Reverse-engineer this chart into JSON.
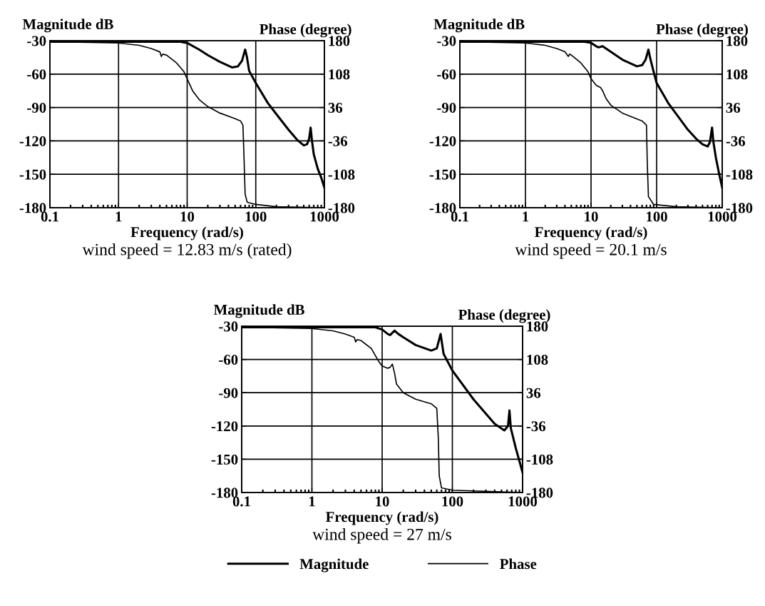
{
  "chart_data": [
    {
      "type": "line",
      "xlabel": "Frequency (rad/s)",
      "ylabel": "Magnitude dB",
      "y2label": "Phase (degree)",
      "subtitle": "wind speed = 12.83 m/s (rated)",
      "log": "x",
      "grid": true,
      "xlim": [
        0.1,
        1000
      ],
      "xticks": [
        {
          "value": 0.1,
          "label": "0.1"
        },
        {
          "value": 1,
          "label": "1"
        },
        {
          "value": 10,
          "label": "10"
        },
        {
          "value": 100,
          "label": "100"
        },
        {
          "value": 1000,
          "label": "1000"
        }
      ],
      "ylim": [
        -180,
        -30
      ],
      "yticks": [
        -180,
        -150,
        -120,
        -90,
        -60,
        -30
      ],
      "y2lim": [
        -180,
        180
      ],
      "y2ticks": [
        -180,
        -108,
        -36,
        36,
        108,
        180
      ],
      "series": [
        {
          "color": "#000000",
          "x": [
            0.1,
            1,
            5,
            8,
            10,
            15,
            20,
            30,
            45,
            55,
            63,
            70,
            74,
            80,
            100,
            150,
            200,
            300,
            400,
            500,
            560,
            600,
            630,
            660,
            700,
            800,
            900,
            1000
          ],
          "values": [
            -31,
            -31,
            -31,
            -31,
            -32,
            -38,
            -43,
            -49,
            -54,
            -53,
            -48,
            -38,
            -44,
            -57,
            -68,
            -86,
            -96,
            -110,
            -119,
            -124,
            -123,
            -118,
            -108,
            -120,
            -132,
            -145,
            -153,
            -162
          ]
        },
        {
          "color": "#000000",
          "axis": "y2",
          "x": [
            0.1,
            1,
            2,
            3,
            4,
            4.2,
            4.4,
            5,
            7,
            9,
            10,
            12,
            15,
            20,
            30,
            50,
            60,
            65,
            67,
            70,
            75,
            100,
            200,
            1000
          ],
          "values": [
            178,
            175,
            170,
            163,
            156,
            146,
            151,
            149,
            132,
            113,
            98,
            72,
            53,
            38,
            24,
            12,
            7,
            -2,
            -60,
            -151,
            -168,
            -173,
            -178,
            -180
          ]
        }
      ]
    },
    {
      "type": "line",
      "xlabel": "Frequency (rad/s)",
      "ylabel": "Magnitude dB",
      "y2label": "Phase (degree)",
      "subtitle": "wind speed = 20.1 m/s",
      "log": "x",
      "grid": true,
      "xlim": [
        0.1,
        1000
      ],
      "xticks": [
        {
          "value": 0.1,
          "label": "0.1"
        },
        {
          "value": 1,
          "label": "1"
        },
        {
          "value": 10,
          "label": "10"
        },
        {
          "value": 100,
          "label": "100"
        },
        {
          "value": 1000,
          "label": "1000"
        }
      ],
      "ylim": [
        -180,
        -30
      ],
      "yticks": [
        -180,
        -150,
        -120,
        -90,
        -60,
        -30
      ],
      "y2lim": [
        -180,
        180
      ],
      "y2ticks": [
        -180,
        -108,
        -36,
        36,
        108,
        180
      ],
      "series": [
        {
          "color": "#000000",
          "x": [
            0.1,
            1,
            5,
            8,
            10,
            12,
            13,
            15,
            20,
            30,
            50,
            60,
            68,
            75,
            80,
            90,
            100,
            150,
            200,
            300,
            400,
            500,
            600,
            650,
            700,
            730,
            800,
            900,
            1000
          ],
          "values": [
            -31,
            -31,
            -31,
            -31,
            -32,
            -35,
            -36,
            -35,
            -40,
            -47,
            -53,
            -52,
            -47,
            -38,
            -46,
            -58,
            -68,
            -86,
            -96,
            -110,
            -118,
            -123,
            -125,
            -121,
            -108,
            -120,
            -135,
            -150,
            -162
          ]
        },
        {
          "color": "#000000",
          "axis": "y2",
          "x": [
            0.1,
            1,
            2,
            3,
            4,
            4.5,
            4.7,
            5,
            7,
            9,
            10,
            12,
            14,
            15,
            17,
            20,
            30,
            60,
            70,
            72,
            75,
            90,
            200,
            1000
          ],
          "values": [
            178,
            175,
            170,
            163,
            156,
            146,
            151,
            149,
            132,
            113,
            98,
            84,
            79,
            72,
            55,
            41,
            24,
            7,
            -2,
            -84,
            -156,
            -173,
            -178,
            -180
          ]
        }
      ]
    },
    {
      "type": "line",
      "xlabel": "Frequency (rad/s)",
      "ylabel": "Magnitude dB",
      "y2label": "Phase (degree)",
      "subtitle": "wind speed = 27 m/s",
      "log": "x",
      "grid": true,
      "legend": "bottom",
      "xlim": [
        0.1,
        1000
      ],
      "xticks": [
        {
          "value": 0.1,
          "label": "0.1"
        },
        {
          "value": 1,
          "label": "1"
        },
        {
          "value": 10,
          "label": "10"
        },
        {
          "value": 100,
          "label": "100"
        },
        {
          "value": 1000,
          "label": "1000"
        }
      ],
      "ylim": [
        -180,
        -30
      ],
      "yticks": [
        -180,
        -150,
        -120,
        -90,
        -60,
        -30
      ],
      "y2lim": [
        -180,
        180
      ],
      "y2ticks": [
        -180,
        -108,
        -36,
        36,
        108,
        180
      ],
      "series": [
        {
          "name": "Magnitude",
          "color": "#000000",
          "x": [
            0.1,
            1,
            5,
            8,
            10,
            12,
            13,
            15,
            17,
            20,
            30,
            50,
            60,
            68,
            75,
            100,
            200,
            400,
            550,
            620,
            650,
            680,
            800,
            1000
          ],
          "values": [
            -31,
            -31,
            -31,
            -31,
            -33,
            -37,
            -38,
            -34,
            -37,
            -40,
            -47,
            -52,
            -50,
            -37,
            -55,
            -70,
            -96,
            -118,
            -124,
            -120,
            -106,
            -122,
            -140,
            -162
          ]
        },
        {
          "name": "Phase",
          "color": "#000000",
          "axis": "y2",
          "x": [
            0.1,
            1,
            2,
            3,
            4,
            4.2,
            4.4,
            5,
            7,
            9,
            10,
            12,
            13,
            14,
            15,
            16,
            20,
            30,
            50,
            60,
            63,
            65,
            70,
            100,
            1000
          ],
          "values": [
            178,
            175,
            170,
            163,
            156,
            146,
            151,
            149,
            132,
            103,
            94,
            89,
            91,
            98,
            79,
            55,
            36,
            22,
            12,
            2,
            -60,
            -144,
            -170,
            -175,
            -180
          ]
        }
      ]
    }
  ]
}
